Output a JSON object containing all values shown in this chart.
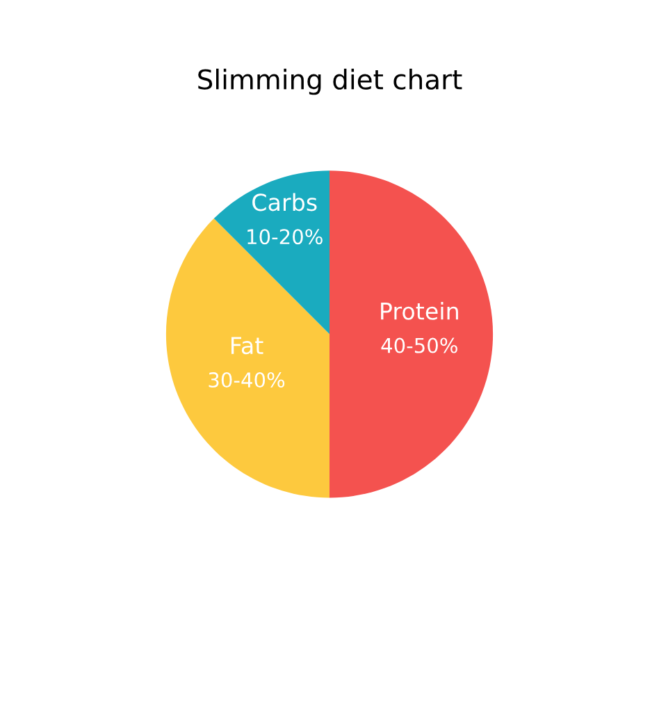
{
  "chart_data": {
    "type": "pie",
    "title": "Slimming diet chart",
    "categories": [
      "Protein",
      "Fat",
      "Carbs"
    ],
    "values": [
      50,
      37.5,
      12.5
    ],
    "annotations": [
      "40-50%",
      "30-40%",
      "10-20%"
    ],
    "colors": [
      "#f4524f",
      "#fdc93e",
      "#1aabbf"
    ]
  }
}
